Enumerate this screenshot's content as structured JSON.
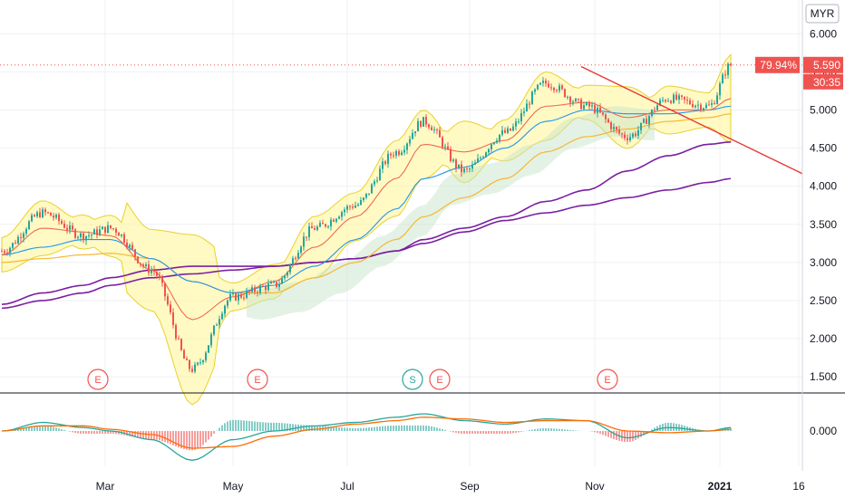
{
  "currency": "MYR",
  "colors": {
    "up": "#26a69a",
    "down": "#ef5350",
    "bb_fill": "#fff59d",
    "bb_line": "#e9d12c",
    "ema_short": "#ef6c50",
    "ema_mid": "#2196f3",
    "sma_long": "#f7b731",
    "sma_longest": "#7b1fa2",
    "cloud": "#c8e6c9",
    "cloud_red": "#ffcdd2",
    "trendline": "#e53935",
    "price_line": "#ef5350",
    "macd": "#26a69a",
    "signal": "#ff6d00",
    "grid": "#eef0f3",
    "axis_text": "#131722",
    "earnings": "#ef5350",
    "split": "#26a69a"
  },
  "price_badge": {
    "percent": "79.94%",
    "price": "5.590",
    "countdown": "30:35"
  },
  "events": [
    "E",
    "E",
    "S",
    "E",
    "E"
  ],
  "chart_data": {
    "type": "candlestick",
    "yaxis": {
      "ticks": [
        "6.000",
        "5.500",
        "5.000",
        "4.500",
        "4.000",
        "3.500",
        "3.000",
        "2.500",
        "2.000",
        "1.500"
      ],
      "ylim": [
        1.3,
        6.3
      ]
    },
    "macd_axis": {
      "ticks": [
        "0.000"
      ]
    },
    "xaxis": {
      "ticks": [
        "Mar",
        "May",
        "Jul",
        "Sep",
        "Nov",
        "2021",
        "16"
      ]
    },
    "last_price": 5.59,
    "key_points": {
      "x_day": [
        0,
        15,
        30,
        40,
        55,
        70,
        85,
        100,
        115,
        130,
        145,
        155,
        170,
        185,
        200,
        215,
        230,
        245,
        260,
        268
      ],
      "close": [
        3.15,
        3.65,
        3.35,
        3.45,
        2.9,
        1.6,
        2.55,
        2.7,
        3.45,
        3.75,
        4.45,
        4.85,
        4.2,
        4.7,
        5.35,
        5.05,
        4.65,
        5.15,
        5.05,
        5.59
      ]
    },
    "ema_20": [
      3.1,
      3.45,
      3.4,
      3.35,
      2.9,
      2.25,
      2.55,
      2.75,
      3.2,
      3.6,
      4.1,
      4.55,
      4.45,
      4.6,
      5.05,
      5.1,
      4.9,
      5.0,
      5.0,
      5.15
    ],
    "ema_50": [
      3.1,
      3.2,
      3.3,
      3.3,
      3.05,
      2.75,
      2.6,
      2.7,
      2.95,
      3.3,
      3.7,
      4.1,
      4.25,
      4.5,
      4.85,
      5.0,
      4.95,
      4.95,
      5.0,
      5.05
    ],
    "sma_100": [
      3.0,
      3.05,
      3.1,
      3.12,
      3.05,
      2.75,
      2.6,
      2.6,
      2.8,
      3.0,
      3.3,
      3.6,
      3.85,
      4.1,
      4.45,
      4.65,
      4.75,
      4.85,
      4.9,
      4.95
    ],
    "sma_200": [
      2.45,
      2.6,
      2.7,
      2.8,
      2.9,
      2.95,
      2.95,
      2.95,
      3.0,
      3.05,
      3.15,
      3.3,
      3.45,
      3.6,
      3.8,
      3.95,
      4.2,
      4.4,
      4.55,
      4.58
    ],
    "sma_300": [
      2.4,
      2.5,
      2.6,
      2.7,
      2.8,
      2.85,
      2.9,
      2.95,
      3.0,
      3.05,
      3.15,
      3.25,
      3.4,
      3.55,
      3.65,
      3.75,
      3.85,
      3.95,
      4.05,
      4.1
    ],
    "trendline": {
      "start": [
        227,
        5.57
      ],
      "end": [
        314,
        4.7
      ]
    },
    "macd": [
      0.0,
      0.05,
      0.02,
      0.0,
      -0.05,
      -0.17,
      -0.05,
      0.0,
      0.03,
      0.05,
      0.08,
      0.1,
      0.06,
      0.04,
      0.07,
      0.06,
      -0.04,
      0.02,
      0.0,
      0.02
    ],
    "signal": [
      0.0,
      0.03,
      0.03,
      0.01,
      -0.02,
      -0.1,
      -0.09,
      -0.03,
      0.01,
      0.04,
      0.06,
      0.08,
      0.07,
      0.05,
      0.06,
      0.06,
      0.0,
      -0.01,
      0.0,
      0.01
    ]
  }
}
